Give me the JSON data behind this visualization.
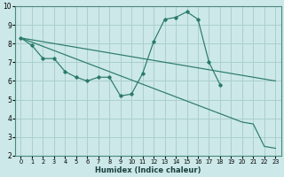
{
  "xlabel": "Humidex (Indice chaleur)",
  "bg_color": "#cce8e8",
  "line_color": "#2a7a6a",
  "grid_color": "#aacfcf",
  "spine_color": "#4a8a7a",
  "xlim": [
    -0.5,
    23.5
  ],
  "ylim": [
    2,
    10
  ],
  "yticks": [
    2,
    3,
    4,
    5,
    6,
    7,
    8,
    9,
    10
  ],
  "xticks": [
    0,
    1,
    2,
    3,
    4,
    5,
    6,
    7,
    8,
    9,
    10,
    11,
    12,
    13,
    14,
    15,
    16,
    17,
    18,
    19,
    20,
    21,
    22,
    23
  ],
  "line1_x": [
    0,
    1,
    2,
    3,
    4,
    5,
    6,
    7,
    8,
    9,
    10,
    11,
    12,
    13,
    14,
    15,
    16,
    17,
    18
  ],
  "line1_y": [
    8.3,
    7.9,
    7.2,
    7.2,
    6.5,
    6.2,
    6.0,
    6.2,
    6.2,
    5.2,
    5.3,
    6.4,
    8.1,
    9.3,
    9.4,
    9.7,
    9.3,
    7.0,
    5.8
  ],
  "line2_x": [
    0,
    23
  ],
  "line2_y": [
    8.3,
    6.0
  ],
  "line3_x": [
    0,
    20,
    21,
    22,
    23
  ],
  "line3_y": [
    8.3,
    3.8,
    3.7,
    2.5,
    2.4
  ],
  "xlabel_fontsize": 6.0,
  "tick_fontsize_x": 4.8,
  "tick_fontsize_y": 5.5
}
